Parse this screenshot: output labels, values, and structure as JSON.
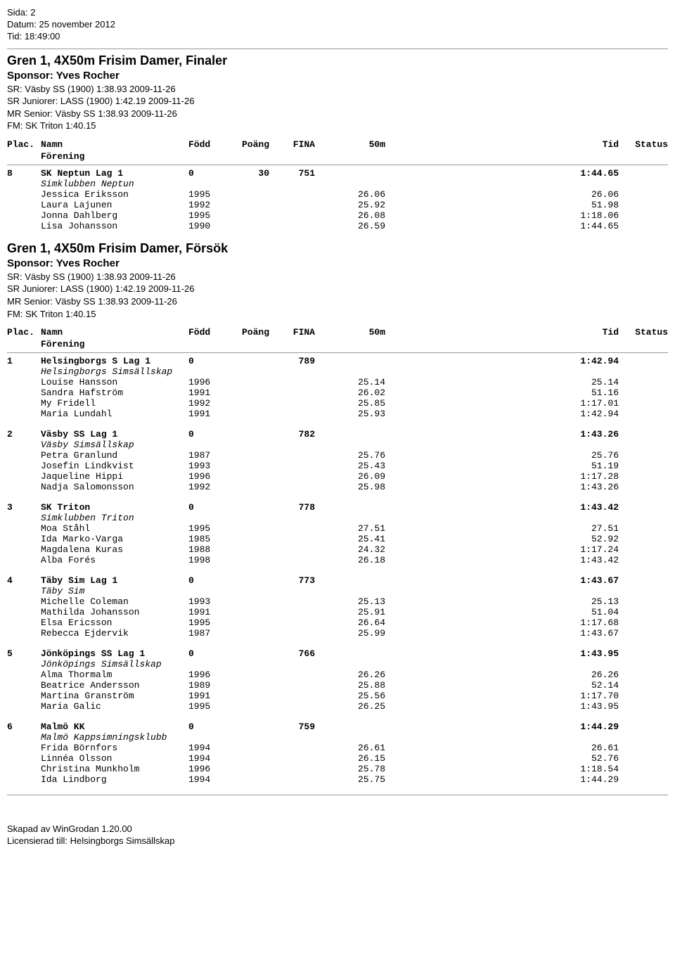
{
  "header": {
    "sida": "Sida: 2",
    "datum": "Datum: 25 november 2012",
    "tid": "Tid: 18:49:00"
  },
  "section1": {
    "title": "Gren 1, 4X50m Frisim Damer, Finaler",
    "sponsor": "Sponsor: Yves Rocher",
    "records": [
      "SR: Väsby SS             (1900) 1:38.93 2009-11-26",
      "SR Juniorer: LASS                   (1900) 1:42.19 2009-11-26",
      "MR Senior: Väsby SS 1:38.93 2009-11-26",
      "FM: SK Triton 1:40.15"
    ],
    "columns": {
      "plac": "Plac.",
      "namn": "Namn",
      "fodd": "Född",
      "poang": "Poäng",
      "fina": "FINA",
      "m50": "50m",
      "tid": "Tid",
      "status": "Status",
      "forening": "Förening"
    },
    "teams": [
      {
        "plac": "8",
        "name": "SK Neptun Lag 1",
        "fodd": "0",
        "poang": "30",
        "fina": "751",
        "tid": "1:44.65",
        "club": "Simklubben Neptun",
        "swimmers": [
          {
            "name": "Jessica Eriksson",
            "fodd": "1995",
            "m50": "26.06",
            "tid": "26.06"
          },
          {
            "name": "Laura Lajunen",
            "fodd": "1992",
            "m50": "25.92",
            "tid": "51.98"
          },
          {
            "name": "Jonna Dahlberg",
            "fodd": "1995",
            "m50": "26.08",
            "tid": "1:18.06"
          },
          {
            "name": "Lisa Johansson",
            "fodd": "1990",
            "m50": "26.59",
            "tid": "1:44.65"
          }
        ]
      }
    ]
  },
  "section2": {
    "title": "Gren 1, 4X50m Frisim Damer, Försök",
    "sponsor": "Sponsor: Yves Rocher",
    "records": [
      "SR: Väsby SS             (1900) 1:38.93 2009-11-26",
      "SR Juniorer: LASS                   (1900) 1:42.19 2009-11-26",
      "MR Senior: Väsby SS 1:38.93 2009-11-26",
      "FM: SK Triton 1:40.15"
    ],
    "columns": {
      "plac": "Plac.",
      "namn": "Namn",
      "fodd": "Född",
      "poang": "Poäng",
      "fina": "FINA",
      "m50": "50m",
      "tid": "Tid",
      "status": "Status",
      "forening": "Förening"
    },
    "teams": [
      {
        "plac": "1",
        "name": "Helsingborgs S Lag 1",
        "fodd": "0",
        "poang": "",
        "fina": "789",
        "tid": "1:42.94",
        "club": "Helsingborgs Simsällskap",
        "swimmers": [
          {
            "name": "Louise Hansson",
            "fodd": "1996",
            "m50": "25.14",
            "tid": "25.14"
          },
          {
            "name": "Sandra Hafström",
            "fodd": "1991",
            "m50": "26.02",
            "tid": "51.16"
          },
          {
            "name": "My Fridell",
            "fodd": "1992",
            "m50": "25.85",
            "tid": "1:17.01"
          },
          {
            "name": "Maria Lundahl",
            "fodd": "1991",
            "m50": "25.93",
            "tid": "1:42.94"
          }
        ]
      },
      {
        "plac": "2",
        "name": "Väsby SS Lag 1",
        "fodd": "0",
        "poang": "",
        "fina": "782",
        "tid": "1:43.26",
        "club": "Väsby Simsällskap",
        "swimmers": [
          {
            "name": "Petra Granlund",
            "fodd": "1987",
            "m50": "25.76",
            "tid": "25.76"
          },
          {
            "name": "Josefin Lindkvist",
            "fodd": "1993",
            "m50": "25.43",
            "tid": "51.19"
          },
          {
            "name": "Jaqueline Hippi",
            "fodd": "1996",
            "m50": "26.09",
            "tid": "1:17.28"
          },
          {
            "name": "Nadja Salomonsson",
            "fodd": "1992",
            "m50": "25.98",
            "tid": "1:43.26"
          }
        ]
      },
      {
        "plac": "3",
        "name": "SK Triton",
        "fodd": "0",
        "poang": "",
        "fina": "778",
        "tid": "1:43.42",
        "club": "Simklubben Triton",
        "swimmers": [
          {
            "name": "Moa Ståhl",
            "fodd": "1995",
            "m50": "27.51",
            "tid": "27.51"
          },
          {
            "name": "Ida Marko-Varga",
            "fodd": "1985",
            "m50": "25.41",
            "tid": "52.92"
          },
          {
            "name": "Magdalena Kuras",
            "fodd": "1988",
            "m50": "24.32",
            "tid": "1:17.24"
          },
          {
            "name": "Alba Forés",
            "fodd": "1998",
            "m50": "26.18",
            "tid": "1:43.42"
          }
        ]
      },
      {
        "plac": "4",
        "name": "Täby Sim Lag 1",
        "fodd": "0",
        "poang": "",
        "fina": "773",
        "tid": "1:43.67",
        "club": "Täby Sim",
        "swimmers": [
          {
            "name": "Michelle Coleman",
            "fodd": "1993",
            "m50": "25.13",
            "tid": "25.13"
          },
          {
            "name": "Mathilda Johansson",
            "fodd": "1991",
            "m50": "25.91",
            "tid": "51.04"
          },
          {
            "name": "Elsa Ericsson",
            "fodd": "1995",
            "m50": "26.64",
            "tid": "1:17.68"
          },
          {
            "name": "Rebecca Ejdervik",
            "fodd": "1987",
            "m50": "25.99",
            "tid": "1:43.67"
          }
        ]
      },
      {
        "plac": "5",
        "name": "Jönköpings SS Lag 1",
        "fodd": "0",
        "poang": "",
        "fina": "766",
        "tid": "1:43.95",
        "club": "Jönköpings Simsällskap",
        "swimmers": [
          {
            "name": "Alma Thormalm",
            "fodd": "1996",
            "m50": "26.26",
            "tid": "26.26"
          },
          {
            "name": "Beatrice Andersson",
            "fodd": "1989",
            "m50": "25.88",
            "tid": "52.14"
          },
          {
            "name": "Martina Granström",
            "fodd": "1991",
            "m50": "25.56",
            "tid": "1:17.70"
          },
          {
            "name": "Maria Galic",
            "fodd": "1995",
            "m50": "26.25",
            "tid": "1:43.95"
          }
        ]
      },
      {
        "plac": "6",
        "name": "Malmö KK",
        "fodd": "0",
        "poang": "",
        "fina": "759",
        "tid": "1:44.29",
        "club": "Malmö Kappsimningsklubb",
        "swimmers": [
          {
            "name": "Frida Börnfors",
            "fodd": "1994",
            "m50": "26.61",
            "tid": "26.61"
          },
          {
            "name": "Linnéa Olsson",
            "fodd": "1994",
            "m50": "26.15",
            "tid": "52.76"
          },
          {
            "name": "Christina Munkholm",
            "fodd": "1996",
            "m50": "25.78",
            "tid": "1:18.54"
          },
          {
            "name": "Ida Lindborg",
            "fodd": "1994",
            "m50": "25.75",
            "tid": "1:44.29"
          }
        ]
      }
    ]
  },
  "footer": {
    "line1": "Skapad av WinGrodan 1.20.00",
    "line2": "Licensierad till: Helsingborgs Simsällskap"
  }
}
